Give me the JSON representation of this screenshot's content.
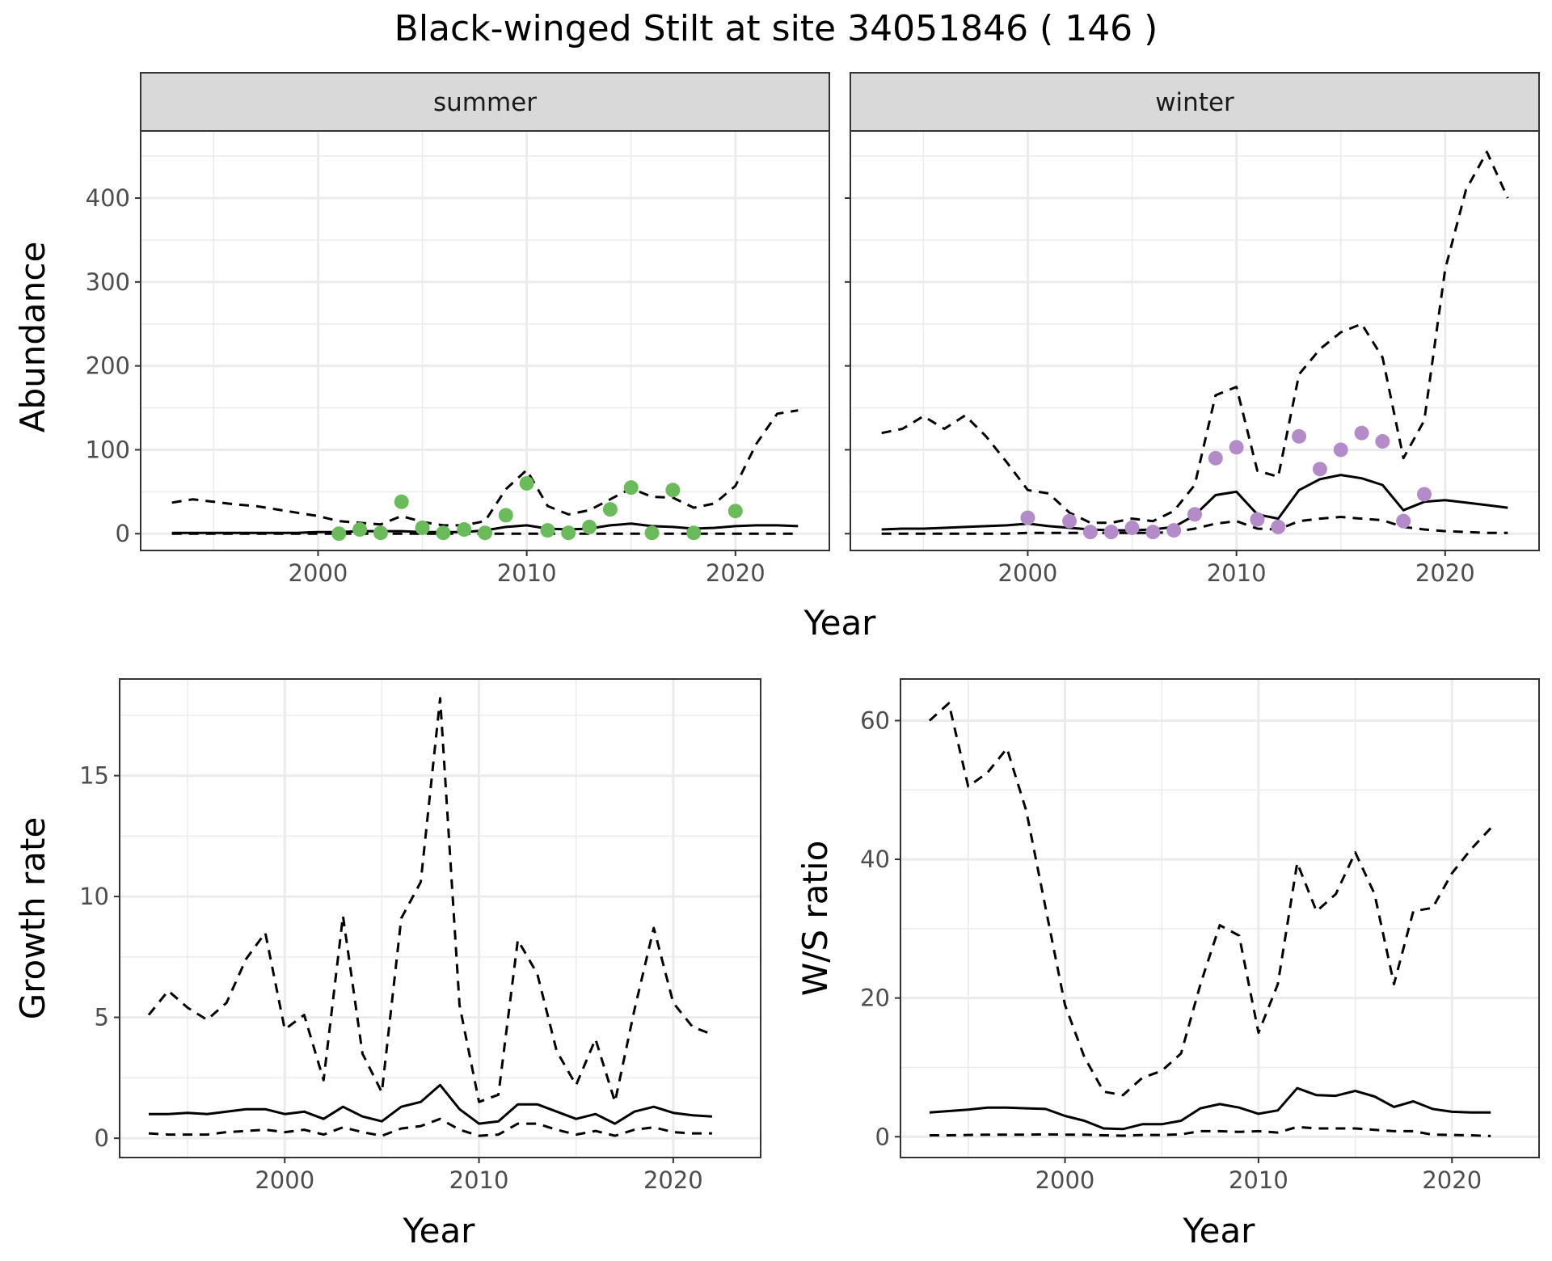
{
  "figure": {
    "title": "Black-winged Stilt at site 34051846 ( 146 )",
    "top_xlabel": "Year"
  },
  "colors": {
    "summer_points": "#6BBB5C",
    "winter_points": "#B28BC8",
    "lines": "#000000",
    "strip_fill": "#D9D9D9",
    "grid": "#EBEBEB"
  },
  "chart_data": [
    {
      "type": "line",
      "panel": "summer",
      "facet_label": "summer",
      "xlabel": "",
      "ylabel": "Abundance",
      "xlim": [
        1991.5,
        2024.5
      ],
      "ylim": [
        -20,
        480
      ],
      "xticks": [
        2000,
        2010,
        2020
      ],
      "yticks": [
        0,
        100,
        200,
        300,
        400
      ],
      "grid": true,
      "x": [
        1993,
        1994,
        1995,
        1996,
        1997,
        1998,
        1999,
        2000,
        2001,
        2002,
        2003,
        2004,
        2005,
        2006,
        2007,
        2008,
        2009,
        2010,
        2011,
        2012,
        2013,
        2014,
        2015,
        2016,
        2017,
        2018,
        2019,
        2020,
        2021,
        2022,
        2023
      ],
      "series": [
        {
          "role": "upper",
          "style": "dashed",
          "values": [
            37,
            41,
            38,
            35,
            33,
            29,
            25,
            21,
            15,
            13,
            11,
            21,
            14,
            10,
            10,
            15,
            53,
            76,
            33,
            23,
            28,
            41,
            54,
            44,
            43,
            31,
            36,
            57,
            107,
            143,
            147
          ]
        },
        {
          "role": "estimate",
          "style": "solid",
          "values": [
            1,
            1,
            1,
            1,
            1,
            1,
            1,
            2,
            2,
            3,
            3,
            3,
            2,
            2,
            2,
            4,
            8,
            10,
            6,
            5,
            6,
            10,
            12,
            9,
            8,
            6,
            7,
            9,
            10,
            10,
            9
          ]
        },
        {
          "role": "lower",
          "style": "dashed",
          "values": [
            0,
            0,
            0,
            0,
            0,
            0,
            0,
            0,
            0,
            0,
            0,
            0,
            0,
            0,
            0,
            0,
            0,
            0,
            0,
            0,
            0,
            0,
            0,
            0,
            0,
            0,
            0,
            0,
            0,
            0,
            0
          ]
        }
      ],
      "points": {
        "x": [
          2001,
          2002,
          2003,
          2004,
          2005,
          2006,
          2007,
          2008,
          2009,
          2010,
          2011,
          2012,
          2013,
          2014,
          2015,
          2016,
          2017,
          2018,
          2020
        ],
        "y": [
          0,
          5,
          1,
          38,
          7,
          1,
          5,
          1,
          22,
          60,
          4,
          1,
          8,
          29,
          55,
          1,
          52,
          1,
          27
        ]
      }
    },
    {
      "type": "line",
      "panel": "winter",
      "facet_label": "winter",
      "xlabel": "",
      "ylabel": "",
      "xlim": [
        1991.5,
        2024.5
      ],
      "ylim": [
        -20,
        480
      ],
      "xticks": [
        2000,
        2010,
        2020
      ],
      "yticks": [
        0,
        100,
        200,
        300,
        400
      ],
      "grid": true,
      "x": [
        1993,
        1994,
        1995,
        1996,
        1997,
        1998,
        1999,
        2000,
        2001,
        2002,
        2003,
        2004,
        2005,
        2006,
        2007,
        2008,
        2009,
        2010,
        2011,
        2012,
        2013,
        2014,
        2015,
        2016,
        2017,
        2018,
        2019,
        2020,
        2021,
        2022,
        2023
      ],
      "series": [
        {
          "role": "upper",
          "style": "dashed",
          "values": [
            120,
            125,
            140,
            125,
            141,
            116,
            85,
            52,
            48,
            25,
            13,
            13,
            18,
            15,
            27,
            58,
            165,
            175,
            75,
            68,
            190,
            220,
            240,
            250,
            210,
            90,
            135,
            315,
            410,
            455,
            400
          ]
        },
        {
          "role": "estimate",
          "style": "solid",
          "values": [
            5,
            6,
            6,
            7,
            8,
            9,
            10,
            12,
            9,
            7,
            5,
            4,
            4,
            5,
            8,
            22,
            46,
            50,
            23,
            18,
            52,
            65,
            70,
            66,
            58,
            28,
            38,
            40,
            37,
            34,
            31
          ]
        },
        {
          "role": "lower",
          "style": "dashed",
          "values": [
            0,
            0,
            0,
            0,
            0,
            0,
            0,
            1,
            1,
            1,
            1,
            1,
            1,
            1,
            2,
            6,
            12,
            15,
            6,
            5,
            15,
            18,
            20,
            18,
            16,
            8,
            5,
            3,
            2,
            1,
            1
          ]
        }
      ],
      "points": {
        "x": [
          2000,
          2002,
          2003,
          2004,
          2005,
          2006,
          2007,
          2008,
          2009,
          2010,
          2011,
          2012,
          2013,
          2014,
          2015,
          2016,
          2017,
          2018,
          2019
        ],
        "y": [
          19,
          15,
          2,
          2,
          7,
          2,
          4,
          23,
          90,
          103,
          17,
          8,
          116,
          77,
          100,
          120,
          110,
          15,
          47
        ]
      }
    },
    {
      "type": "line",
      "panel": "growth",
      "xlabel": "Year",
      "ylabel": "Growth rate",
      "xlim": [
        1991.5,
        2024.5
      ],
      "ylim": [
        -0.8,
        19.0
      ],
      "xticks": [
        2000,
        2010,
        2020
      ],
      "yticks": [
        0,
        5,
        10,
        15
      ],
      "grid": true,
      "x": [
        1993,
        1994,
        1995,
        1996,
        1997,
        1998,
        1999,
        2000,
        2001,
        2002,
        2003,
        2004,
        2005,
        2006,
        2007,
        2008,
        2009,
        2010,
        2011,
        2012,
        2013,
        2014,
        2015,
        2016,
        2017,
        2018,
        2019,
        2020,
        2021,
        2022
      ],
      "series": [
        {
          "role": "upper",
          "style": "dashed",
          "values": [
            5.1,
            6.1,
            5.4,
            4.9,
            5.6,
            7.4,
            8.5,
            4.5,
            5.1,
            2.4,
            9.2,
            3.5,
            1.9,
            9.1,
            10.6,
            18.2,
            5.5,
            1.5,
            1.8,
            8.2,
            6.8,
            3.6,
            2.2,
            4.1,
            1.5,
            5.3,
            8.7,
            5.6,
            4.6,
            4.3
          ]
        },
        {
          "role": "estimate",
          "style": "solid",
          "values": [
            1.0,
            1.0,
            1.05,
            1.0,
            1.1,
            1.2,
            1.2,
            1.0,
            1.1,
            0.8,
            1.3,
            0.9,
            0.7,
            1.3,
            1.5,
            2.2,
            1.2,
            0.6,
            0.7,
            1.4,
            1.4,
            1.1,
            0.8,
            1.0,
            0.6,
            1.1,
            1.3,
            1.05,
            0.95,
            0.9
          ]
        },
        {
          "role": "lower",
          "style": "dashed",
          "values": [
            0.2,
            0.15,
            0.15,
            0.15,
            0.25,
            0.3,
            0.35,
            0.25,
            0.35,
            0.15,
            0.45,
            0.25,
            0.1,
            0.4,
            0.5,
            0.8,
            0.35,
            0.1,
            0.15,
            0.6,
            0.6,
            0.35,
            0.15,
            0.3,
            0.1,
            0.35,
            0.45,
            0.25,
            0.2,
            0.2
          ]
        }
      ]
    },
    {
      "type": "line",
      "panel": "ratio",
      "xlabel": "Year",
      "ylabel": "W/S ratio",
      "xlim": [
        1991.5,
        2024.5
      ],
      "ylim": [
        -3.0,
        66.0
      ],
      "xticks": [
        2000,
        2010,
        2020
      ],
      "yticks": [
        0,
        20,
        40,
        60
      ],
      "grid": true,
      "x": [
        1993,
        1994,
        1995,
        1996,
        1997,
        1998,
        1999,
        2000,
        2001,
        2002,
        2003,
        2004,
        2005,
        2006,
        2007,
        2008,
        2009,
        2010,
        2011,
        2012,
        2013,
        2014,
        2015,
        2016,
        2017,
        2018,
        2019,
        2020,
        2021,
        2022
      ],
      "series": [
        {
          "role": "upper",
          "style": "dashed",
          "values": [
            60,
            62.5,
            50.5,
            52.5,
            56,
            47,
            33,
            19,
            11.5,
            6.5,
            6,
            8.5,
            9.5,
            12,
            22,
            30.5,
            29,
            15,
            22,
            39.5,
            32.5,
            35,
            41,
            35,
            22,
            32.5,
            33,
            38,
            41.5,
            44.5
          ]
        },
        {
          "role": "estimate",
          "style": "solid",
          "values": [
            3.5,
            3.7,
            3.9,
            4.2,
            4.2,
            4.1,
            4.0,
            3.0,
            2.3,
            1.2,
            1.1,
            1.8,
            1.8,
            2.3,
            4.1,
            4.7,
            4.2,
            3.3,
            3.8,
            7.0,
            6.0,
            5.9,
            6.6,
            5.8,
            4.3,
            5.1,
            4.0,
            3.6,
            3.5,
            3.5
          ]
        },
        {
          "role": "lower",
          "style": "dashed",
          "values": [
            0.2,
            0.2,
            0.25,
            0.3,
            0.3,
            0.3,
            0.35,
            0.3,
            0.3,
            0.2,
            0.15,
            0.25,
            0.25,
            0.35,
            0.8,
            0.8,
            0.7,
            0.8,
            0.6,
            1.4,
            1.2,
            1.2,
            1.2,
            1.0,
            0.8,
            0.8,
            0.3,
            0.25,
            0.2,
            0.1
          ]
        }
      ]
    }
  ]
}
